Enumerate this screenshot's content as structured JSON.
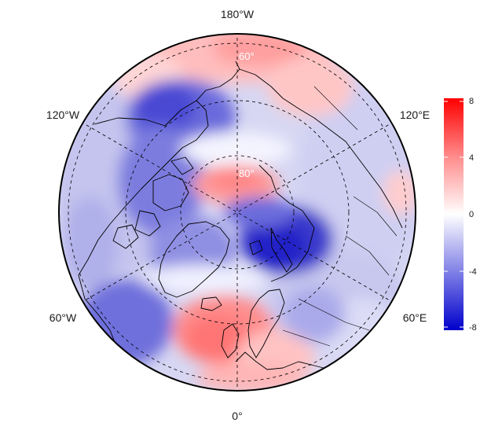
{
  "map": {
    "projection": "north-polar-stereographic",
    "longitude_labels": {
      "top": "180°W",
      "bottom": "0°",
      "upper_left": "120°W",
      "upper_right": "120°E",
      "lower_left": "60°W",
      "lower_right": "60°E"
    },
    "latitude_labels": {
      "outer": "60°",
      "inner": "80°"
    },
    "grid": "dashed graticule",
    "coastlines": true,
    "country_borders": true
  },
  "colorbar": {
    "ticks": [
      "8",
      "4",
      "0",
      "-4",
      "-8"
    ],
    "min": -8,
    "max": 8,
    "colors": {
      "high": "#ff0000",
      "mid": "#ffffff",
      "low": "#0000cc"
    },
    "placement": "right"
  }
}
